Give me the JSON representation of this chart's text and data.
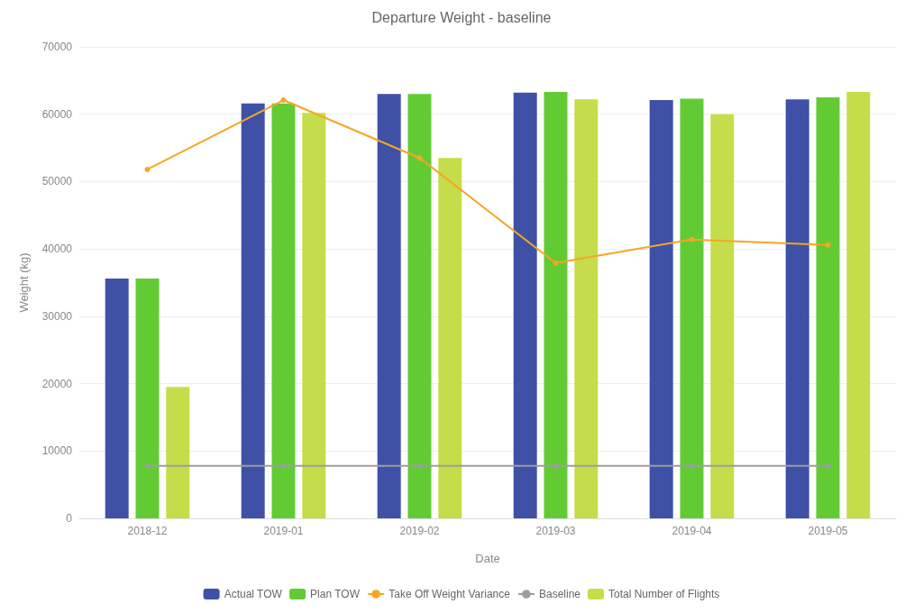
{
  "chart_data": {
    "type": "bar",
    "title": "Departure Weight - baseline",
    "xlabel": "Date",
    "ylabel": "Weight (kg)",
    "categories": [
      "2018-12",
      "2019-01",
      "2019-02",
      "2019-03",
      "2019-04",
      "2019-05"
    ],
    "series": [
      {
        "name": "Actual TOW",
        "color": "#3f51a6",
        "values": [
          35600,
          61600,
          63000,
          63200,
          62100,
          62200
        ]
      },
      {
        "name": "Plan TOW",
        "color": "#62cb34",
        "values": [
          35600,
          61600,
          63000,
          63300,
          62300,
          62500
        ]
      },
      {
        "name": "Take Off Weight Variance",
        "type": "line",
        "color": "#f5a623",
        "values": [
          51800,
          62100,
          53500,
          37900,
          41400,
          40600
        ]
      },
      {
        "name": "Baseline",
        "type": "line",
        "color": "#9e9e9e",
        "values": [
          7800,
          7800,
          7800,
          7800,
          7800,
          7800
        ]
      },
      {
        "name": "Total Number of Flights",
        "color": "#c5dd4a",
        "values": [
          19500,
          60200,
          53500,
          62200,
          60000,
          63300
        ]
      }
    ],
    "ylim": [
      0,
      70000
    ],
    "yticks": [
      0,
      10000,
      20000,
      30000,
      40000,
      50000,
      60000,
      70000
    ],
    "grid": "y",
    "legend": "bottom",
    "marker": "circle",
    "line_style": "solid"
  }
}
